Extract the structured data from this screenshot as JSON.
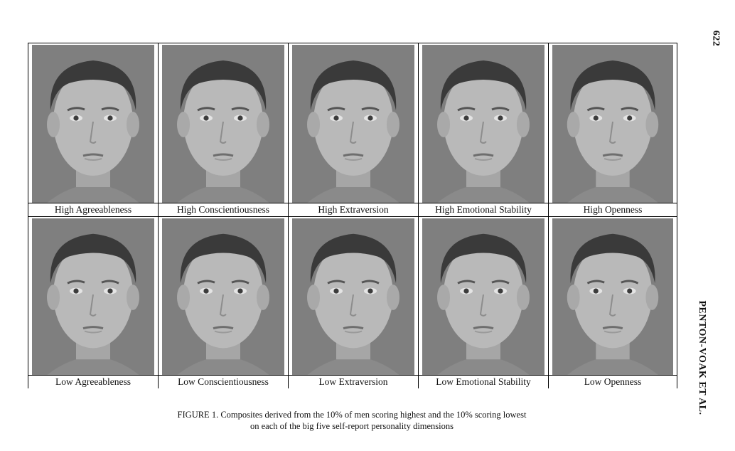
{
  "page_number": "622",
  "running_head": "PENTON-VOAK ET AL.",
  "figure": {
    "rows": [
      {
        "panels": [
          {
            "label": "High Agreeableness",
            "image": "composite-face"
          },
          {
            "label": "High Conscientiousness",
            "image": "composite-face"
          },
          {
            "label": "High Extraversion",
            "image": "composite-face"
          },
          {
            "label": "High Emotional Stability",
            "image": "composite-face"
          },
          {
            "label": "High Openness",
            "image": "composite-face"
          }
        ]
      },
      {
        "panels": [
          {
            "label": "Low Agreeableness",
            "image": "composite-face"
          },
          {
            "label": "Low Conscientiousness",
            "image": "composite-face"
          },
          {
            "label": "Low Extraversion",
            "image": "composite-face"
          },
          {
            "label": "Low Emotional Stability",
            "image": "composite-face"
          },
          {
            "label": "Low Openness",
            "image": "composite-face"
          }
        ]
      }
    ],
    "caption_line1": "FIGURE 1. Composites derived from the 10% of men scoring highest and the 10% scoring lowest",
    "caption_line2": "on each of the big five self-report personality dimensions"
  },
  "colors": {
    "photo_background": "#7f7f7f",
    "hair": "#3a3a3a",
    "skin": "#b9b9b9"
  }
}
